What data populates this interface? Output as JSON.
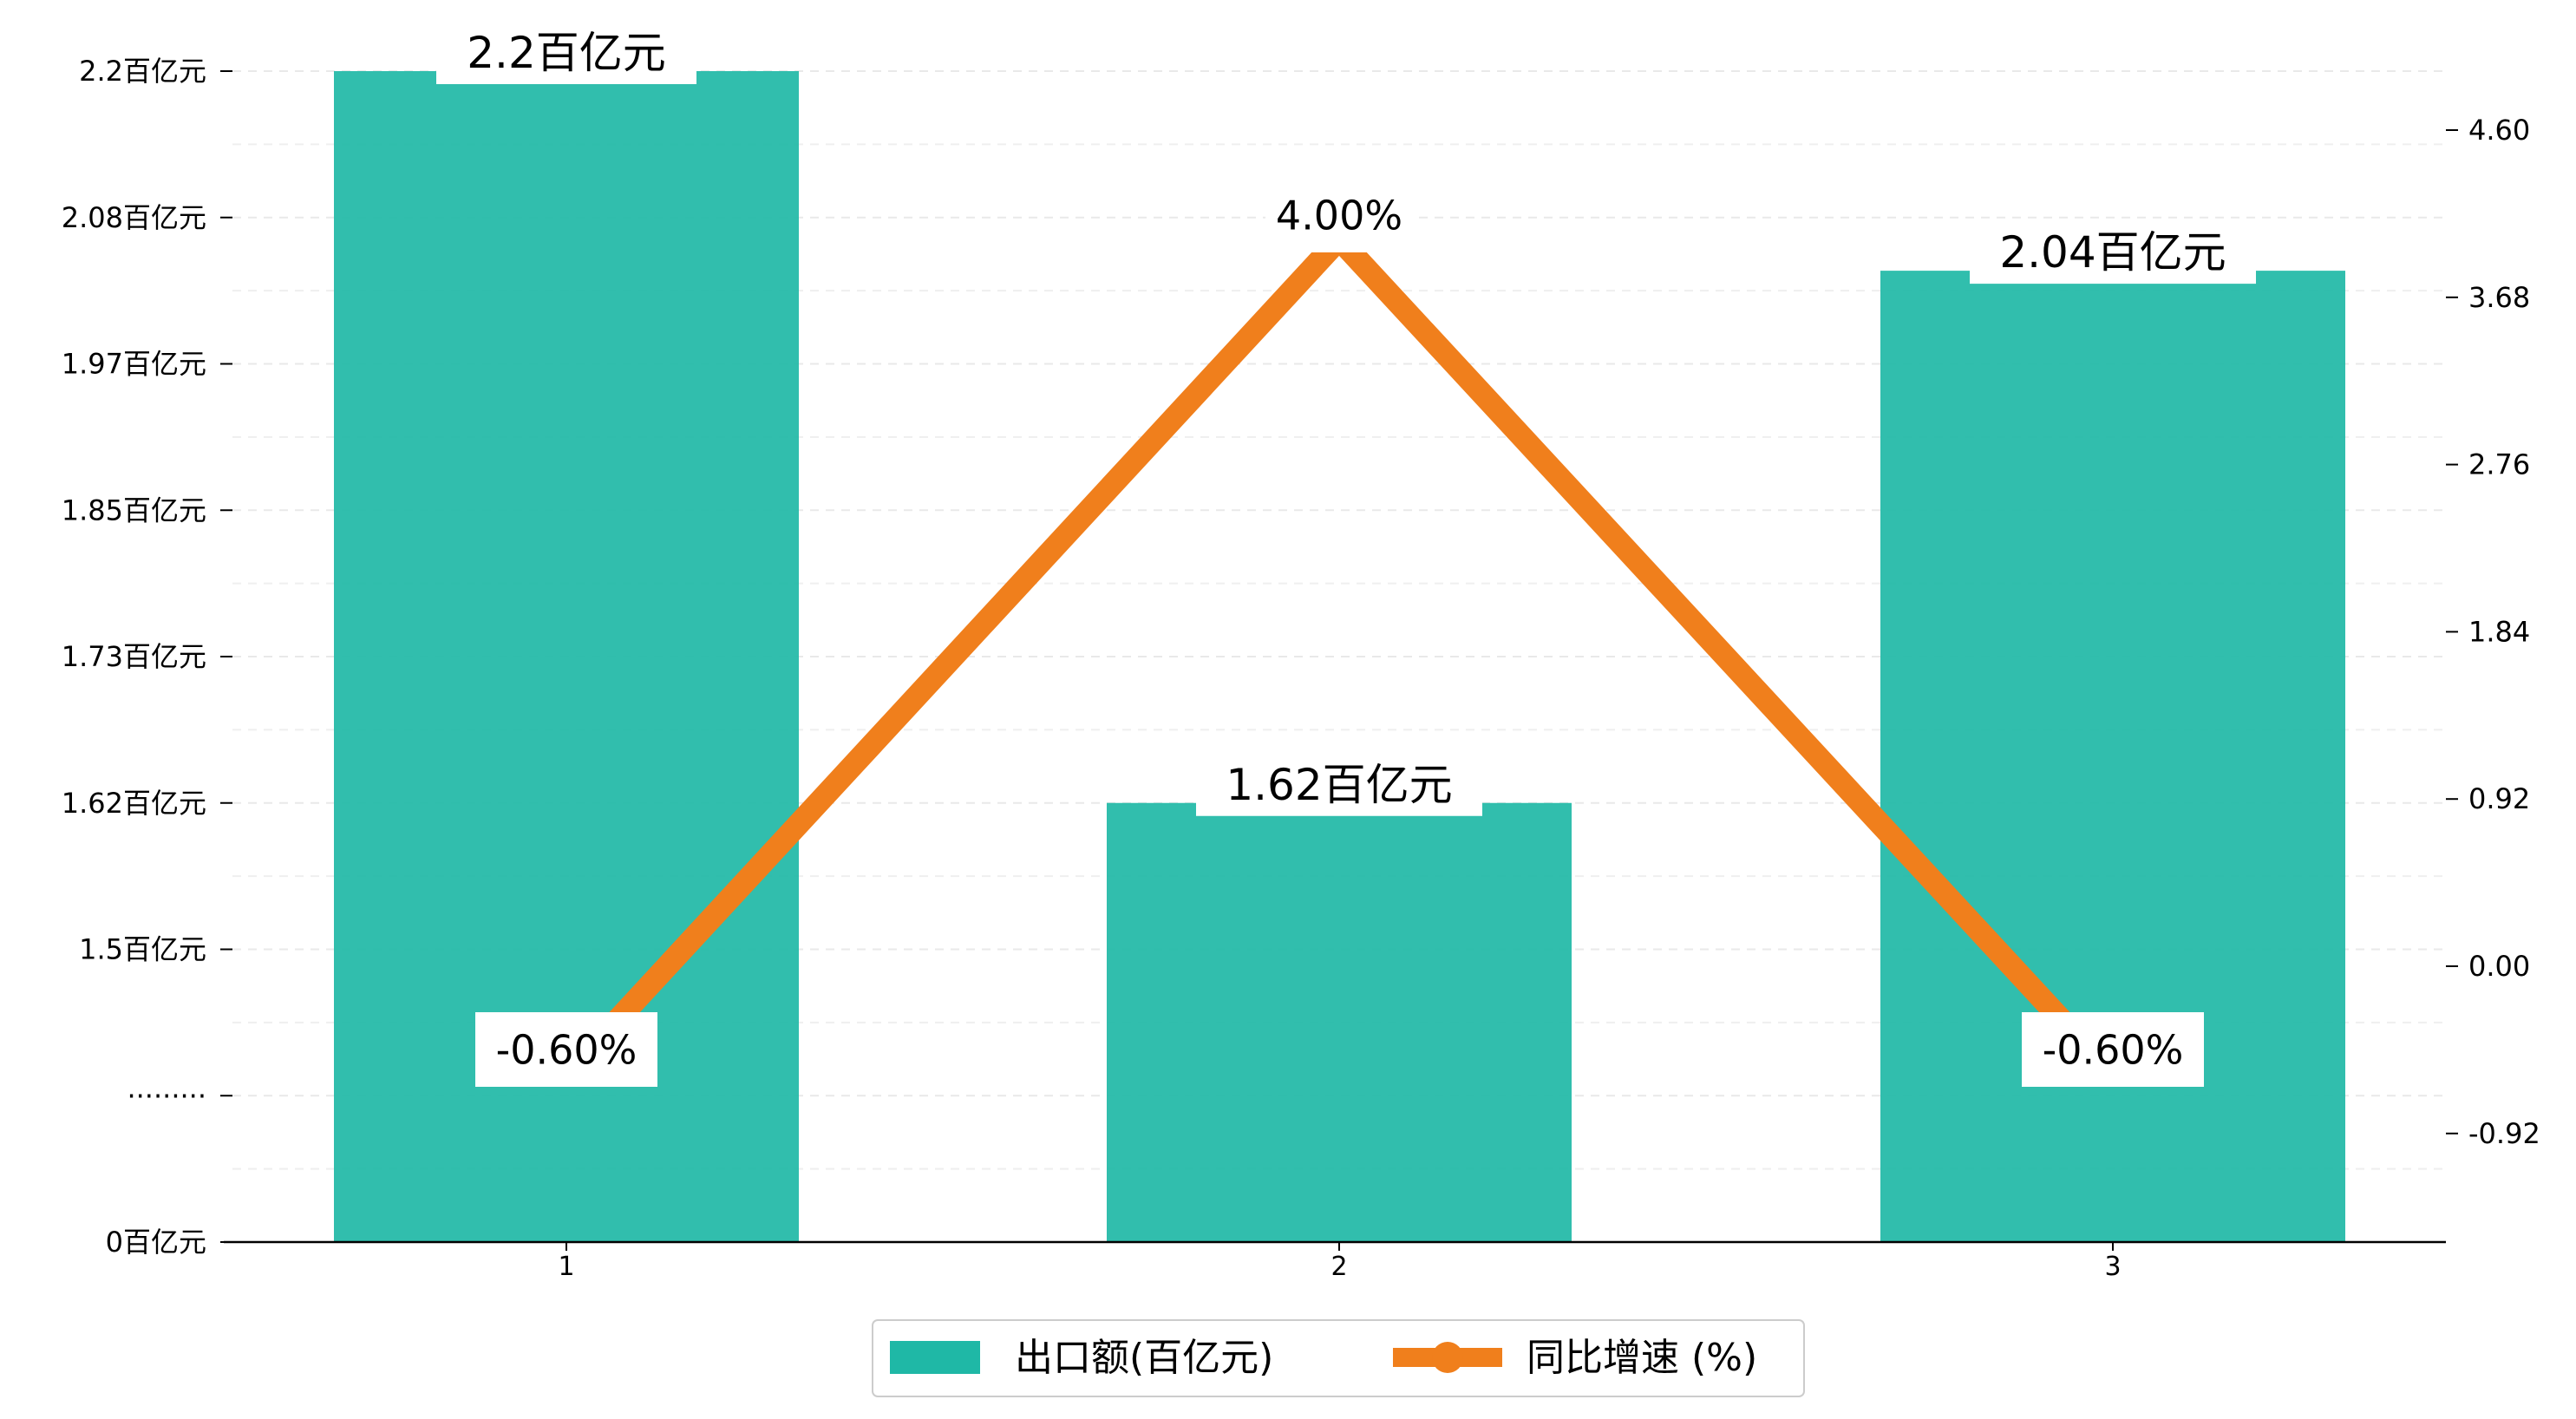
{
  "chart_data": {
    "type": "bar+line",
    "categories": [
      "1",
      "2",
      "3"
    ],
    "bar_series": {
      "name": "出口额(百亿元)",
      "values": [
        2.2,
        1.62,
        2.04
      ],
      "labels": [
        "2.2百亿元",
        "1.62百亿元",
        "2.04百亿元"
      ],
      "color": "#1fb8a6"
    },
    "line_series": {
      "name": "同比增速 (%)",
      "values": [
        -0.6,
        4.0,
        -0.6
      ],
      "labels": [
        "-0.60%",
        "4.00%",
        "-0.60%"
      ],
      "color": "#f07f1c"
    },
    "y_left": {
      "tick_labels": [
        "0百亿元",
        "·········",
        "1.5百亿元",
        "1.62百亿元",
        "1.73百亿元",
        "1.85百亿元",
        "1.97百亿元",
        "2.08百亿元",
        "2.2百亿元"
      ],
      "tick_values": [
        0,
        1.38,
        1.5,
        1.62,
        1.73,
        1.85,
        1.97,
        2.08,
        2.2
      ],
      "broken_axis": true
    },
    "y_right": {
      "ticks": [
        -0.92,
        0.0,
        0.92,
        1.84,
        2.76,
        3.68,
        4.6
      ],
      "tick_labels": [
        "-0.92",
        "0.00",
        "0.92",
        "1.84",
        "2.76",
        "3.68",
        "4.60"
      ],
      "ylim": [
        -1.52,
        5.0
      ]
    },
    "grid": true,
    "legend_position": "bottom-center"
  }
}
